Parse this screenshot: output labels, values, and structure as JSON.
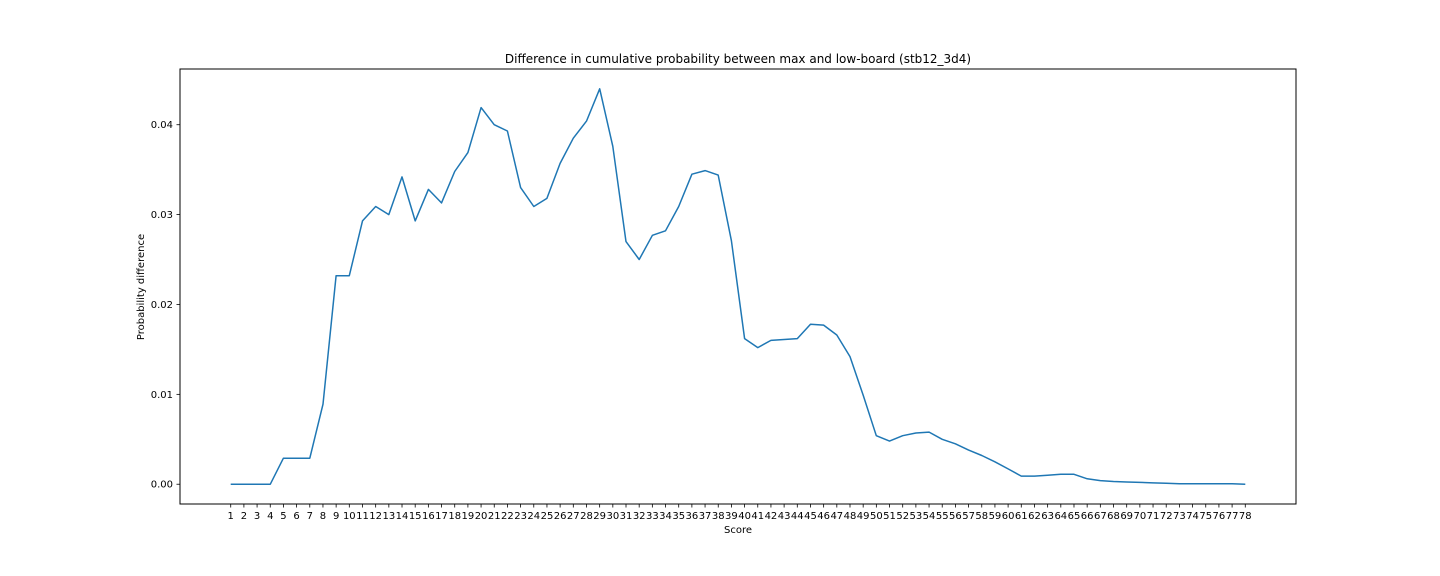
{
  "chart_data": {
    "type": "line",
    "title": "Difference in cumulative probability between max and low-board (stb12_3d4)",
    "xlabel": "Score",
    "ylabel": "Probability difference",
    "x": [
      1,
      2,
      3,
      4,
      5,
      6,
      7,
      8,
      9,
      10,
      11,
      12,
      13,
      14,
      15,
      16,
      17,
      18,
      19,
      20,
      21,
      22,
      23,
      24,
      25,
      26,
      27,
      28,
      29,
      30,
      31,
      32,
      33,
      34,
      35,
      36,
      37,
      38,
      39,
      40,
      41,
      42,
      43,
      44,
      45,
      46,
      47,
      48,
      49,
      50,
      51,
      52,
      53,
      54,
      55,
      56,
      57,
      58,
      59,
      60,
      61,
      62,
      63,
      64,
      65,
      66,
      67,
      68,
      69,
      70,
      71,
      72,
      73,
      74,
      75,
      76,
      77,
      78
    ],
    "y": [
      0.0,
      0.0,
      0.0,
      0.0,
      0.0029,
      0.0029,
      0.0029,
      0.0089,
      0.0232,
      0.0232,
      0.0293,
      0.0309,
      0.03,
      0.0342,
      0.0293,
      0.0328,
      0.0313,
      0.0348,
      0.0369,
      0.0419,
      0.04,
      0.0393,
      0.033,
      0.0309,
      0.0318,
      0.0357,
      0.0385,
      0.0404,
      0.044,
      0.0376,
      0.027,
      0.025,
      0.0277,
      0.0282,
      0.0309,
      0.0345,
      0.0349,
      0.0344,
      0.0271,
      0.0162,
      0.0152,
      0.016,
      0.0161,
      0.0162,
      0.0178,
      0.0177,
      0.0166,
      0.0142,
      0.0099,
      0.0054,
      0.0048,
      0.0054,
      0.0057,
      0.0058,
      0.005,
      0.0045,
      0.0038,
      0.0032,
      0.0025,
      0.0017,
      0.0009,
      0.0009,
      0.001,
      0.0011,
      0.0011,
      0.0006,
      0.0004,
      0.0003,
      0.00025,
      0.0002,
      0.00015,
      0.0001,
      5e-05,
      5e-05,
      5e-05,
      5e-05,
      5e-05,
      0.0
    ],
    "yticks": [
      "0.00",
      "0.01",
      "0.02",
      "0.03",
      "0.04"
    ],
    "ytick_values": [
      0.0,
      0.01,
      0.02,
      0.03,
      0.04
    ],
    "ylim": [
      -0.0022,
      0.0462
    ],
    "xlim": [
      -2.85,
      81.85
    ],
    "grid": false,
    "legend": "none",
    "line_color": "#1f77b4"
  }
}
